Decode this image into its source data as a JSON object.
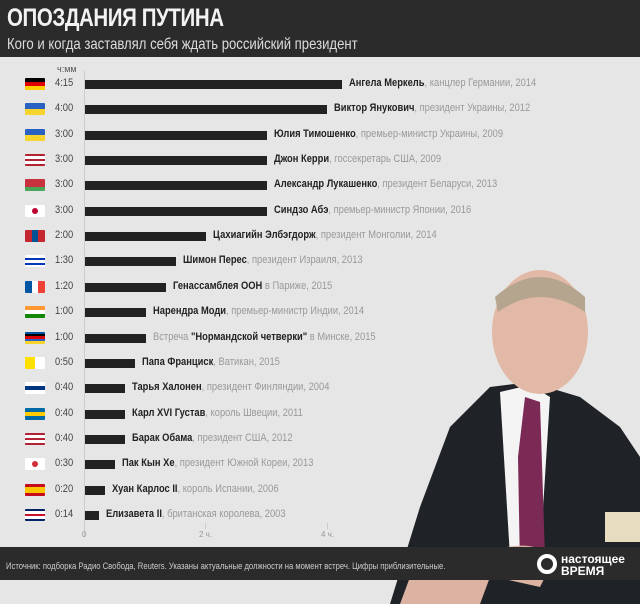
{
  "header": {
    "title": "ОПОЗДАНИЯ ПУТИНА",
    "subtitle": "Кого и когда заставлял себя ждать российский президент"
  },
  "chart_data": {
    "type": "bar",
    "orientation": "horizontal",
    "unit_label": "ч:мм",
    "xlim_minutes": [
      0,
      255
    ],
    "ticks": [
      {
        "minutes": 0,
        "label": "0"
      },
      {
        "minutes": 120,
        "label": "2 ч."
      },
      {
        "minutes": 240,
        "label": "4 ч."
      }
    ],
    "rows": [
      {
        "time": "4:15",
        "minutes": 255,
        "pre": "",
        "name": "Ангела Меркель",
        "post": ", канцлер Германии, 2014",
        "flag": [
          "#000000",
          "#dd0000",
          "#ffce00"
        ]
      },
      {
        "time": "4:00",
        "minutes": 240,
        "pre": "",
        "name": "Виктор Янукович",
        "post": ", президент Украины, 2012",
        "flag": [
          "#2a62c4",
          "#f6d32d"
        ]
      },
      {
        "time": "3:00",
        "minutes": 180,
        "pre": "",
        "name": "Юлия Тимошенко",
        "post": ", премьер-министр Украины, 2009",
        "flag": [
          "#2a62c4",
          "#f6d32d"
        ]
      },
      {
        "time": "3:00",
        "minutes": 180,
        "pre": "",
        "name": "Джон Керри",
        "post": ", госсекретарь США, 2009",
        "flag": [
          "#b22234",
          "#ffffff",
          "#b22234",
          "#ffffff",
          "#b22234"
        ]
      },
      {
        "time": "3:00",
        "minutes": 180,
        "pre": "",
        "name": "Александр Лукашенко",
        "post": ", президент Беларуси, 2013",
        "flag": [
          "#c8313e",
          "#c8313e",
          "#4aa657"
        ]
      },
      {
        "time": "3:00",
        "minutes": 180,
        "pre": "",
        "name": "Синдзо Абэ",
        "post": ", премьер-министр Японии, 2016",
        "flag": [
          "#ffffff"
        ],
        "dot": "#bc002d"
      },
      {
        "time": "2:00",
        "minutes": 120,
        "pre": "",
        "name": "Цахиагийн Элбэгдорж",
        "post": ", президент Монголии, 2014",
        "flag": [
          "#c4272f",
          "#015197",
          "#c4272f"
        ],
        "vertical": true
      },
      {
        "time": "1:30",
        "minutes": 90,
        "pre": "",
        "name": "Шимон Перес",
        "post": ", президент Израиля, 2013",
        "flag": [
          "#ffffff",
          "#0038b8",
          "#ffffff",
          "#0038b8",
          "#ffffff"
        ]
      },
      {
        "time": "1:20",
        "minutes": 80,
        "pre": "",
        "name": "Генассамблея ООН",
        "post": " в Париже, 2015",
        "flag": [
          "#0055a4",
          "#ffffff",
          "#ef4135"
        ],
        "vertical": true
      },
      {
        "time": "1:00",
        "minutes": 60,
        "pre": "",
        "name": "Нарендра Моди",
        "post": ", премьер-министр Индии, 2014",
        "flag": [
          "#ff9933",
          "#ffffff",
          "#138808"
        ]
      },
      {
        "time": "1:00",
        "minutes": 60,
        "pre": "Встреча ",
        "name": "\"Нормандской четверки\"",
        "post": " в Минске, 2015",
        "flag": [
          "#0055a4",
          "#000000",
          "#dd0000",
          "#2a62c4",
          "#f6d32d"
        ]
      },
      {
        "time": "0:50",
        "minutes": 50,
        "pre": "",
        "name": "Папа Франциск",
        "post": ", Ватикан, 2015",
        "flag": [
          "#ffe000",
          "#ffffff"
        ],
        "vertical": true
      },
      {
        "time": "0:40",
        "minutes": 40,
        "pre": "",
        "name": "Тарья Халонен",
        "post": ", президент Финляндии, 2004",
        "flag": [
          "#ffffff",
          "#003580",
          "#ffffff"
        ]
      },
      {
        "time": "0:40",
        "minutes": 40,
        "pre": "",
        "name": "Карл XVI Густав",
        "post": ", король Швеции, 2011",
        "flag": [
          "#006aa7",
          "#fecc00",
          "#006aa7"
        ]
      },
      {
        "time": "0:40",
        "minutes": 40,
        "pre": "",
        "name": "Барак Обама",
        "post": ", президент США, 2012",
        "flag": [
          "#b22234",
          "#ffffff",
          "#b22234",
          "#ffffff",
          "#b22234"
        ]
      },
      {
        "time": "0:30",
        "minutes": 30,
        "pre": "",
        "name": "Пак Кын Хе",
        "post": ", президент Южной Кореи, 2013",
        "flag": [
          "#ffffff"
        ],
        "dot": "#cd2e3a"
      },
      {
        "time": "0:20",
        "minutes": 20,
        "pre": "",
        "name": "Хуан Карлос II",
        "post": ", король Испании, 2006",
        "flag": [
          "#c60b1e",
          "#ffc400",
          "#ffc400",
          "#c60b1e"
        ]
      },
      {
        "time": "0:14",
        "minutes": 14,
        "pre": "",
        "name": "Елизавета II",
        "post": ", британская королева, 2003",
        "flag": [
          "#012169",
          "#ffffff",
          "#c8102e",
          "#ffffff",
          "#012169"
        ]
      }
    ]
  },
  "footer": {
    "source": "Источник: подборка Радио Свобода, Reuters. Указаны актуальные должности на момент встреч. Цифры приблизительные.",
    "logo_line1": "настоящее",
    "logo_line2": "время"
  }
}
